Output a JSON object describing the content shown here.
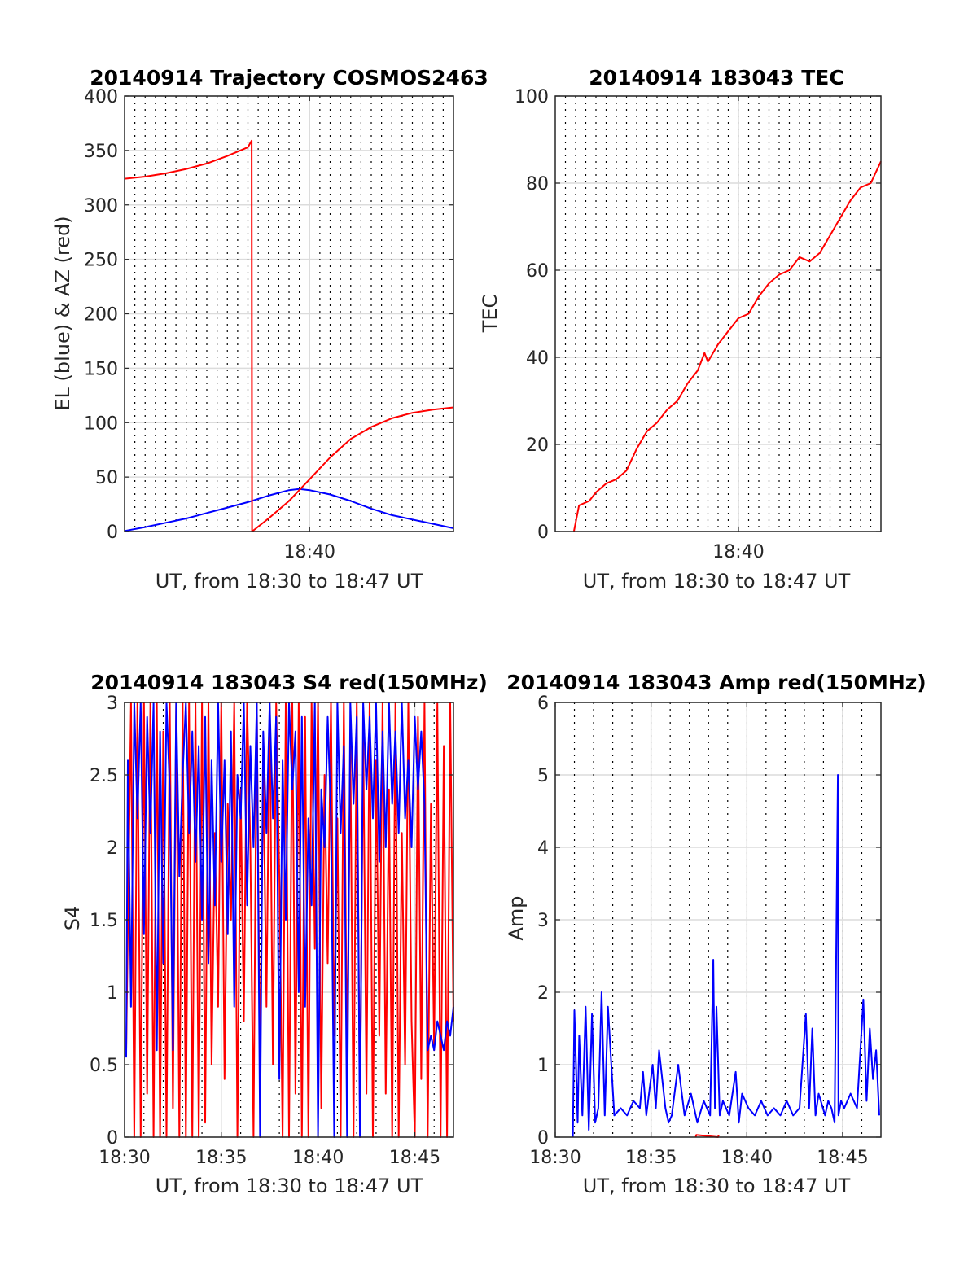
{
  "figure": {
    "background": "#ffffff",
    "axis_color": "#262626",
    "grid_color": "#dcdcdc",
    "minor_grid_color": "#000000"
  },
  "chart_data": [
    {
      "type": "line",
      "title": "20140914 Trajectory COSMOS2463",
      "xlabel": "UT, from 18:30 to 18:47 UT",
      "ylabel": "EL (blue) & AZ (red)",
      "xlim": [
        "18:31:00",
        "18:47:00"
      ],
      "ylim": [
        0,
        400
      ],
      "xticks": [
        "18:40"
      ],
      "yticks": [
        0,
        50,
        100,
        150,
        200,
        250,
        300,
        350,
        400
      ],
      "grid": true,
      "minor_grid_x": "dotted, every 30 s",
      "series": [
        {
          "color": "#0000ff",
          "x": [
            "18:31:00",
            "18:32:00",
            "18:33:00",
            "18:34:00",
            "18:35:00",
            "18:36:00",
            "18:37:00",
            "18:38:00",
            "18:39:00",
            "18:39:30",
            "18:40:00",
            "18:41:00",
            "18:42:00",
            "18:43:00",
            "18:44:00",
            "18:45:00",
            "18:46:00",
            "18:47:00"
          ],
          "y": [
            0.5,
            4,
            8,
            12,
            17,
            22,
            27,
            33,
            38,
            39,
            38,
            34,
            28,
            21,
            15,
            11,
            7,
            3
          ]
        },
        {
          "color": "#ff0000",
          "x": [
            "18:31:00",
            "18:32:00",
            "18:33:00",
            "18:34:00",
            "18:35:00",
            "18:36:00",
            "18:37:00",
            "18:37:11",
            "18:37:12",
            "18:38:00",
            "18:39:00",
            "18:39:30",
            "18:40:00",
            "18:41:00",
            "18:42:00",
            "18:43:00",
            "18:44:00",
            "18:45:00",
            "18:46:00",
            "18:47:00"
          ],
          "y": [
            324,
            326,
            329,
            333,
            338,
            345,
            353,
            359,
            0,
            12,
            28,
            38,
            48,
            68,
            85,
            96,
            104,
            109,
            112,
            114
          ]
        }
      ]
    },
    {
      "type": "line",
      "title": "20140914 183043 TEC",
      "xlabel": "UT, from 18:30 to 18:47 UT",
      "ylabel": "TEC",
      "xlim": [
        "18:31:00",
        "18:47:00"
      ],
      "ylim": [
        0,
        100
      ],
      "xticks": [
        "18:40"
      ],
      "yticks": [
        0,
        20,
        40,
        60,
        80,
        100
      ],
      "grid": true,
      "minor_grid_x": "dotted, every 30 s",
      "series": [
        {
          "color": "#ff0000",
          "x": [
            "18:31:55",
            "18:32:10",
            "18:32:40",
            "18:33:00",
            "18:33:30",
            "18:34:00",
            "18:34:30",
            "18:35:00",
            "18:35:30",
            "18:36:00",
            "18:36:30",
            "18:37:00",
            "18:37:30",
            "18:38:00",
            "18:38:20",
            "18:38:30",
            "18:39:00",
            "18:39:30",
            "18:40:00",
            "18:40:30",
            "18:41:00",
            "18:41:30",
            "18:42:00",
            "18:42:30",
            "18:43:00",
            "18:43:30",
            "18:44:00",
            "18:44:30",
            "18:45:00",
            "18:45:30",
            "18:46:00",
            "18:46:30",
            "18:47:00"
          ],
          "y": [
            0,
            6,
            7,
            9,
            11,
            12,
            14,
            19,
            23,
            25,
            28,
            30,
            34,
            37,
            41,
            39,
            43,
            46,
            49,
            50,
            54,
            57,
            59,
            60,
            63,
            62,
            64,
            68,
            72,
            76,
            79,
            80,
            85
          ]
        }
      ]
    },
    {
      "type": "line",
      "title": "20140914 183043 S4 red(150MHz)",
      "xlabel": "UT, from 18:30 to 18:47 UT",
      "ylabel": "S4",
      "xlim": [
        "18:30:00",
        "18:47:00"
      ],
      "ylim": [
        0,
        3
      ],
      "xticks": [
        "18:30",
        "18:35",
        "18:40",
        "18:45"
      ],
      "yticks": [
        0,
        0.5,
        1,
        1.5,
        2,
        2.5,
        3
      ],
      "grid": true,
      "minor_grid_x": "dotted, every 1 min",
      "series": [
        {
          "color": "#ff0000",
          "x": [
            "18:30:05",
            "18:30:20",
            "18:30:30",
            "18:30:40",
            "18:30:50",
            "18:31:00",
            "18:31:10",
            "18:31:20",
            "18:31:30",
            "18:31:40",
            "18:31:50",
            "18:32:00",
            "18:32:10",
            "18:32:20",
            "18:32:30",
            "18:32:40",
            "18:32:50",
            "18:33:00",
            "18:33:10",
            "18:33:20",
            "18:33:30",
            "18:33:40",
            "18:33:50",
            "18:34:00",
            "18:34:10",
            "18:34:20",
            "18:34:30",
            "18:34:40",
            "18:34:50",
            "18:35:00",
            "18:35:10",
            "18:35:20",
            "18:35:30",
            "18:35:40",
            "18:35:50",
            "18:36:00",
            "18:36:10",
            "18:36:20",
            "18:36:30",
            "18:36:40",
            "18:36:50",
            "18:37:00",
            "18:37:10",
            "18:37:20",
            "18:37:30",
            "18:37:40",
            "18:37:50",
            "18:38:00",
            "18:38:10",
            "18:38:20",
            "18:38:30",
            "18:38:40",
            "18:38:50",
            "18:39:00",
            "18:39:10",
            "18:39:20",
            "18:39:30",
            "18:39:40",
            "18:39:50",
            "18:40:00",
            "18:40:10",
            "18:40:20",
            "18:40:30",
            "18:40:40",
            "18:40:50",
            "18:41:00",
            "18:41:10",
            "18:41:20",
            "18:41:30",
            "18:41:40",
            "18:41:50",
            "18:42:00",
            "18:42:10",
            "18:42:20",
            "18:42:30",
            "18:42:40",
            "18:42:50",
            "18:43:00",
            "18:43:10",
            "18:43:20",
            "18:43:30",
            "18:43:40",
            "18:43:50",
            "18:44:00",
            "18:44:10",
            "18:44:20",
            "18:44:30",
            "18:44:40",
            "18:44:50",
            "18:45:00",
            "18:45:10",
            "18:45:20",
            "18:45:30",
            "18:45:40",
            "18:45:50",
            "18:46:00",
            "18:46:10",
            "18:46:20",
            "18:46:30",
            "18:46:40",
            "18:46:50",
            "18:47:00"
          ],
          "y": [
            0.6,
            3,
            0,
            3,
            0,
            3,
            0.3,
            3,
            0,
            3,
            0,
            2.8,
            0,
            3,
            0.2,
            3,
            0,
            3,
            0,
            3,
            0,
            3,
            0,
            3,
            0.1,
            3,
            0.5,
            2.1,
            0.9,
            3,
            0.4,
            2.3,
            1.5,
            3,
            0,
            2.4,
            0.8,
            3,
            2,
            0,
            3,
            0.4,
            2.6,
            0.9,
            3,
            0.5,
            3,
            1.8,
            0,
            3,
            0,
            3,
            0.3,
            3,
            0,
            2.9,
            0,
            3,
            1.3,
            3,
            0.2,
            2.5,
            1.2,
            3,
            0.7,
            2.2,
            0,
            3,
            0.5,
            2.7,
            0,
            3,
            0.1,
            2.8,
            0.3,
            3,
            0,
            2.6,
            0.7,
            3,
            0.3,
            2.4,
            0,
            3,
            0,
            2.1,
            0.5,
            3,
            0.8,
            0,
            2.9,
            0.4,
            3,
            0,
            2.3,
            0.6,
            3,
            0,
            2.7,
            0,
            3,
            0.8
          ]
        },
        {
          "color": "#0000ff",
          "x": [
            "18:30:05",
            "18:30:10",
            "18:30:20",
            "18:30:30",
            "18:30:40",
            "18:30:50",
            "18:31:00",
            "18:31:10",
            "18:31:20",
            "18:31:30",
            "18:31:40",
            "18:31:50",
            "18:32:00",
            "18:32:10",
            "18:32:20",
            "18:32:30",
            "18:32:40",
            "18:32:50",
            "18:33:00",
            "18:33:10",
            "18:33:20",
            "18:33:30",
            "18:33:40",
            "18:33:50",
            "18:34:00",
            "18:34:10",
            "18:34:20",
            "18:34:30",
            "18:34:40",
            "18:34:50",
            "18:35:00",
            "18:35:10",
            "18:35:20",
            "18:35:30",
            "18:35:40",
            "18:35:50",
            "18:36:00",
            "18:36:10",
            "18:36:20",
            "18:36:30",
            "18:36:40",
            "18:36:50",
            "18:37:00",
            "18:37:10",
            "18:37:20",
            "18:37:30",
            "18:37:40",
            "18:37:50",
            "18:38:00",
            "18:38:10",
            "18:38:20",
            "18:38:30",
            "18:38:40",
            "18:38:50",
            "18:39:00",
            "18:39:10",
            "18:39:20",
            "18:39:30",
            "18:39:40",
            "18:39:50",
            "18:40:00",
            "18:40:10",
            "18:40:20",
            "18:40:30",
            "18:40:40",
            "18:40:50",
            "18:41:00",
            "18:41:10",
            "18:41:20",
            "18:41:30",
            "18:41:40",
            "18:41:50",
            "18:42:00",
            "18:42:10",
            "18:42:20",
            "18:42:30",
            "18:42:40",
            "18:42:50",
            "18:43:00",
            "18:43:10",
            "18:43:20",
            "18:43:30",
            "18:43:40",
            "18:43:50",
            "18:44:00",
            "18:44:10",
            "18:44:20",
            "18:44:30",
            "18:44:40",
            "18:44:50",
            "18:45:00",
            "18:45:10",
            "18:45:20",
            "18:45:30",
            "18:45:40",
            "18:45:50",
            "18:46:00",
            "18:46:10",
            "18:46:20",
            "18:46:30",
            "18:46:40",
            "18:46:50",
            "18:47:00"
          ],
          "y": [
            0.55,
            2.6,
            0.9,
            3,
            2.2,
            3,
            1.4,
            2.9,
            2.1,
            3,
            0.6,
            2.8,
            1.2,
            3,
            2.4,
            0.6,
            3,
            1.8,
            2.5,
            3,
            2.1,
            2.8,
            1.9,
            2.7,
            1.5,
            2.9,
            1.2,
            2.6,
            1.6,
            3,
            1.9,
            2.6,
            1.4,
            2.8,
            0.9,
            2.5,
            2.2,
            3,
            1.6,
            2.7,
            2.0,
            3,
            0,
            2.8,
            2.1,
            3,
            2.2,
            2.9,
            0.4,
            2.6,
            1.5,
            3,
            2.4,
            2.8,
            1.0,
            2.9,
            0.9,
            2.2,
            1.6,
            3,
            0,
            2.4,
            2.0,
            2.9,
            2.2,
            0,
            3,
            2.1,
            2.7,
            0,
            3,
            2.3,
            2.9,
            0,
            3,
            2.4,
            2.9,
            2.2,
            3,
            1.9,
            2.8,
            2.0,
            3,
            2.3,
            2.8,
            2.1,
            3,
            2.2,
            2.6,
            2.0,
            2.9,
            2.4,
            2.8,
            2.3,
            0.6,
            0.7,
            0.6,
            0.8,
            0.7,
            0.6,
            0.8,
            0.7,
            0.9
          ]
        }
      ]
    },
    {
      "type": "line",
      "title": "20140914 183043 Amp red(150MHz)",
      "xlabel": "UT, from 18:30 to 18:47 UT",
      "ylabel": "Amp",
      "xlim": [
        "18:30:00",
        "18:47:00"
      ],
      "ylim": [
        0,
        6
      ],
      "xticks": [
        "18:30",
        "18:35",
        "18:40",
        "18:45"
      ],
      "yticks": [
        0,
        1,
        2,
        3,
        4,
        5,
        6
      ],
      "grid": true,
      "minor_grid_x": "dotted, every 1 min",
      "series": [
        {
          "color": "#ff0000",
          "x": [
            "18:37:20",
            "18:37:22",
            "18:38:30",
            "18:38:32"
          ],
          "y": [
            0,
            0.03,
            0,
            0.03
          ]
        },
        {
          "color": "#0000ff",
          "x": [
            "18:30:55",
            "18:31:00",
            "18:31:10",
            "18:31:15",
            "18:31:25",
            "18:31:35",
            "18:31:45",
            "18:31:55",
            "18:32:05",
            "18:32:15",
            "18:32:25",
            "18:32:35",
            "18:32:45",
            "18:33:05",
            "18:33:25",
            "18:33:45",
            "18:34:05",
            "18:34:25",
            "18:34:35",
            "18:34:45",
            "18:35:05",
            "18:35:15",
            "18:35:25",
            "18:35:45",
            "18:35:55",
            "18:36:05",
            "18:36:25",
            "18:36:45",
            "18:37:05",
            "18:37:25",
            "18:37:45",
            "18:38:05",
            "18:38:15",
            "18:38:20",
            "18:38:25",
            "18:38:35",
            "18:38:45",
            "18:39:05",
            "18:39:25",
            "18:39:35",
            "18:39:45",
            "18:40:05",
            "18:40:25",
            "18:40:45",
            "18:41:05",
            "18:41:25",
            "18:41:45",
            "18:42:05",
            "18:42:25",
            "18:42:45",
            "18:43:05",
            "18:43:15",
            "18:43:25",
            "18:43:35",
            "18:43:45",
            "18:44:05",
            "18:44:15",
            "18:44:25",
            "18:44:35",
            "18:44:45",
            "18:44:47",
            "18:44:55",
            "18:45:05",
            "18:45:25",
            "18:45:45",
            "18:46:05",
            "18:46:15",
            "18:46:25",
            "18:46:35",
            "18:46:45",
            "18:46:55"
          ],
          "y": [
            0,
            1.75,
            0.2,
            1.4,
            0.3,
            1.8,
            0.1,
            1.7,
            0.2,
            0.4,
            2.0,
            0.3,
            1.8,
            0.3,
            0.4,
            0.3,
            0.5,
            0.4,
            0.9,
            0.3,
            1.0,
            0.4,
            1.2,
            0.4,
            0.2,
            0.3,
            1.0,
            0.3,
            0.6,
            0.2,
            0.5,
            0.3,
            2.45,
            0.4,
            1.8,
            0.3,
            0.5,
            0.3,
            0.9,
            0.2,
            0.6,
            0.4,
            0.3,
            0.5,
            0.3,
            0.4,
            0.3,
            0.5,
            0.3,
            0.4,
            1.7,
            0.4,
            1.5,
            0.3,
            0.6,
            0.3,
            0.5,
            0.4,
            0.2,
            5.0,
            0.3,
            0.5,
            0.4,
            0.6,
            0.4,
            1.9,
            0.5,
            1.5,
            0.8,
            1.2,
            0.3
          ]
        }
      ]
    }
  ]
}
